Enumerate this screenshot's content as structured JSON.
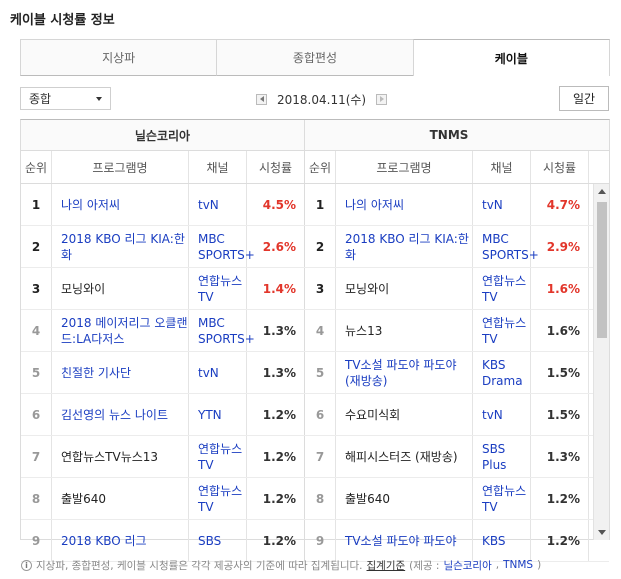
{
  "title": "케이블 시청률 정보",
  "tabs": [
    {
      "label": "지상파"
    },
    {
      "label": "종합편성"
    },
    {
      "label": "케이블"
    }
  ],
  "filter": {
    "selected": "종합"
  },
  "date": {
    "value": "2018.04.11(수)"
  },
  "period_button": "일간",
  "sources": {
    "left": "닐슨코리아",
    "right": "TNMS"
  },
  "headers": {
    "rank": "순위",
    "program": "프로그램명",
    "channel": "채널",
    "rating": "시청률"
  },
  "nielsen": [
    {
      "rank": "1",
      "program": "나의 아저씨",
      "channel": "tvN",
      "rating": "4.5%"
    },
    {
      "rank": "2",
      "program": "2018 KBO 리그 KIA:한화",
      "channel": "MBC SPORTS+",
      "rating": "2.6%"
    },
    {
      "rank": "3",
      "program": "모닝와이",
      "channel": "연합뉴스TV",
      "rating": "1.4%"
    },
    {
      "rank": "4",
      "program": "2018 메이저리그 오클랜드:LA다저스",
      "channel": "MBC SPORTS+",
      "rating": "1.3%"
    },
    {
      "rank": "5",
      "program": "친절한 기사단",
      "channel": "tvN",
      "rating": "1.3%"
    },
    {
      "rank": "6",
      "program": "김선영의 뉴스 나이트",
      "channel": "YTN",
      "rating": "1.2%"
    },
    {
      "rank": "7",
      "program": "연합뉴스TV뉴스13",
      "channel": "연합뉴스TV",
      "rating": "1.2%"
    },
    {
      "rank": "8",
      "program": "출발640",
      "channel": "연합뉴스TV",
      "rating": "1.2%"
    },
    {
      "rank": "9",
      "program": "2018 KBO 리그",
      "channel": "SBS",
      "rating": "1.2%"
    }
  ],
  "tnms": [
    {
      "rank": "1",
      "program": "나의 아저씨",
      "channel": "tvN",
      "rating": "4.7%"
    },
    {
      "rank": "2",
      "program": "2018 KBO 리그 KIA:한화",
      "channel": "MBC SPORTS+",
      "rating": "2.9%"
    },
    {
      "rank": "3",
      "program": "모닝와이",
      "channel": "연합뉴스TV",
      "rating": "1.6%"
    },
    {
      "rank": "4",
      "program": "뉴스13",
      "channel": "연합뉴스TV",
      "rating": "1.6%"
    },
    {
      "rank": "5",
      "program": "TV소설 파도야 파도야(재방송)",
      "channel": "KBS Drama",
      "rating": "1.5%"
    },
    {
      "rank": "6",
      "program": "수요미식회",
      "channel": "tvN",
      "rating": "1.5%"
    },
    {
      "rank": "7",
      "program": "해피시스터즈 (재방송)",
      "channel": "SBS Plus",
      "rating": "1.3%"
    },
    {
      "rank": "8",
      "program": "출발640",
      "channel": "연합뉴스TV",
      "rating": "1.2%"
    },
    {
      "rank": "9",
      "program": "TV소설 파도야 파도야",
      "channel": "KBS",
      "rating": "1.2%"
    }
  ],
  "footer": {
    "icon": "info-icon",
    "note": "지상파, 종합편성, 케이블 시청률은 각각 제공사의 기준에 따라 집계됩니다.",
    "criteria_link": "집계기준",
    "provider_prefix": "(제공 :",
    "provider_nielsen": "닐슨코리아",
    "provider_sep": ",",
    "provider_tnms": "TNMS",
    "provider_suffix": ")"
  },
  "colors": {
    "link": "#1a3dc1",
    "hot": "#e2362b"
  }
}
